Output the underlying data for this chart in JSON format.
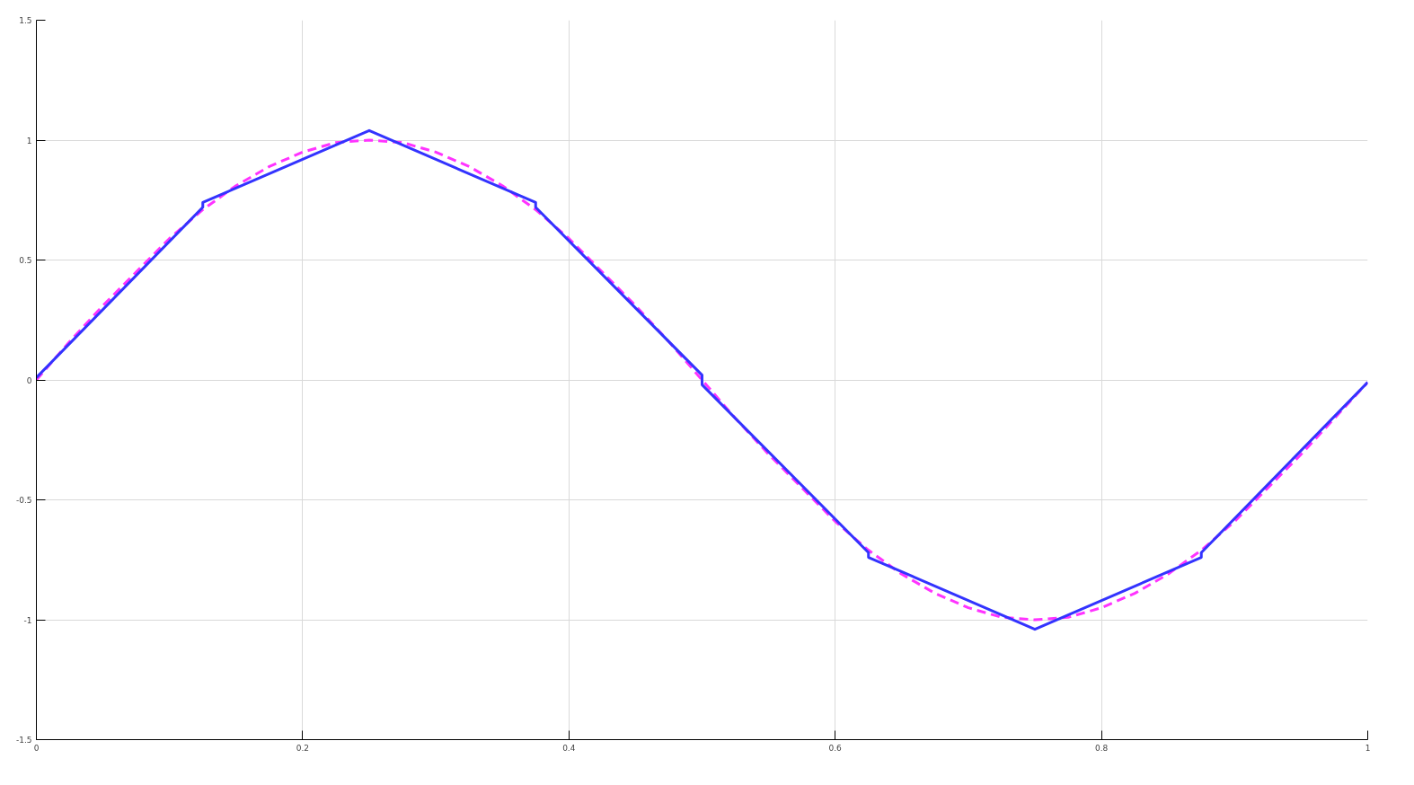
{
  "chart_data": {
    "type": "line",
    "xlim": [
      0,
      1
    ],
    "ylim": [
      -1.5,
      1.5
    ],
    "xticks": [
      0,
      0.2,
      0.4,
      0.6,
      0.8,
      1
    ],
    "yticks": [
      -1.5,
      -1,
      -0.5,
      0,
      0.5,
      1,
      1.5
    ],
    "grid": true,
    "series": [
      {
        "color": "#ff33ff",
        "line_style": "dashed",
        "x": [
          0,
          0.025,
          0.05,
          0.075,
          0.1,
          0.125,
          0.15,
          0.175,
          0.2,
          0.225,
          0.25,
          0.275,
          0.3,
          0.325,
          0.35,
          0.375,
          0.4,
          0.425,
          0.45,
          0.475,
          0.5,
          0.525,
          0.55,
          0.575,
          0.6,
          0.625,
          0.65,
          0.675,
          0.7,
          0.725,
          0.75,
          0.775,
          0.8,
          0.825,
          0.85,
          0.875,
          0.9,
          0.925,
          0.95,
          0.975,
          1
        ],
        "values": [
          0,
          0.16,
          0.31,
          0.45,
          0.59,
          0.71,
          0.81,
          0.89,
          0.95,
          0.99,
          1.0,
          0.99,
          0.95,
          0.89,
          0.81,
          0.71,
          0.59,
          0.45,
          0.31,
          0.16,
          0,
          -0.16,
          -0.31,
          -0.45,
          -0.59,
          -0.71,
          -0.81,
          -0.89,
          -0.95,
          -0.99,
          -1.0,
          -0.99,
          -0.95,
          -0.89,
          -0.81,
          -0.71,
          -0.59,
          -0.45,
          -0.31,
          -0.16,
          -0.01
        ]
      },
      {
        "color": "#3333ff",
        "line_style": "solid",
        "x": [
          0,
          0.125,
          0.125,
          0.25,
          0.375,
          0.375,
          0.5,
          0.5,
          0.625,
          0.625,
          0.75,
          0.875,
          0.875,
          1
        ],
        "values": [
          0.01,
          0.72,
          0.74,
          1.04,
          0.74,
          0.72,
          0.02,
          -0.02,
          -0.72,
          -0.74,
          -1.04,
          -0.74,
          -0.72,
          -0.01
        ]
      }
    ]
  }
}
